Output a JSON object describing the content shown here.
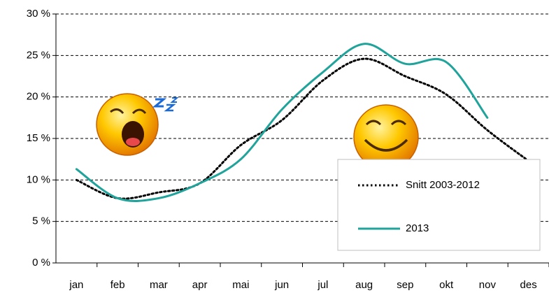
{
  "chart_data": {
    "type": "line",
    "categories": [
      "jan",
      "feb",
      "mar",
      "apr",
      "mai",
      "jun",
      "jul",
      "aug",
      "sep",
      "okt",
      "nov",
      "des"
    ],
    "series": [
      {
        "name": "Snitt 2003-2012",
        "color": "#000000",
        "style": "dotted",
        "values": [
          10.0,
          7.8,
          8.5,
          9.6,
          14.2,
          17.2,
          22.0,
          24.6,
          22.5,
          20.3,
          16.0,
          12.3
        ]
      },
      {
        "name": "2013",
        "color": "#1fa39a",
        "style": "solid",
        "values": [
          11.3,
          7.8,
          7.8,
          9.6,
          12.5,
          18.5,
          23.0,
          26.4,
          24.0,
          24.2,
          17.5,
          null
        ]
      }
    ],
    "ylim": [
      0,
      30
    ],
    "yticks": [
      {
        "value": 0,
        "label": "0 %"
      },
      {
        "value": 5,
        "label": "5 %"
      },
      {
        "value": 10,
        "label": "10 %"
      },
      {
        "value": 15,
        "label": "15 %"
      },
      {
        "value": 20,
        "label": "20 %"
      },
      {
        "value": 25,
        "label": "25 %"
      },
      {
        "value": 30,
        "label": "30 %"
      }
    ],
    "grid": true,
    "smooth": true,
    "legend": "lower right"
  }
}
